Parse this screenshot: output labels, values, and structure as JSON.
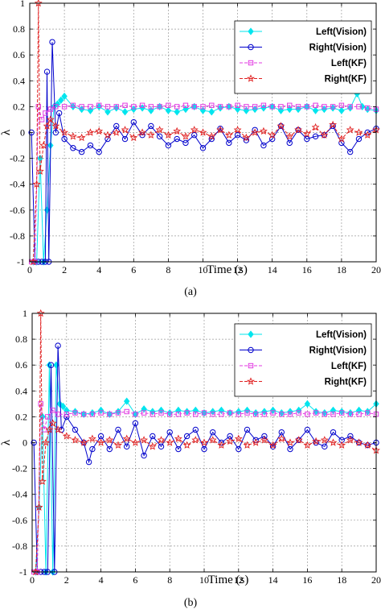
{
  "chart_data": [
    {
      "type": "line",
      "caption": "(a)",
      "xlabel": "Time (s)",
      "ylabel": "λ",
      "xlim": [
        0,
        20
      ],
      "ylim": [
        -1,
        1
      ],
      "xticks": [
        0,
        2,
        4,
        6,
        8,
        10,
        12,
        14,
        16,
        18,
        20
      ],
      "yticks": [
        1,
        0.8,
        0.6,
        0.4,
        0.2,
        0,
        -0.2,
        -0.4,
        -0.6,
        -0.8,
        -1
      ],
      "grid": true,
      "legend_position": "top-right",
      "series": [
        {
          "name": "Left(Vision)",
          "color": "#00e5ee",
          "marker": "diamond",
          "linestyle": "solid",
          "x": [
            0.2,
            0.4,
            0.6,
            0.8,
            1.0,
            1.2,
            1.4,
            1.6,
            1.8,
            2.0,
            2.5,
            3,
            3.5,
            4,
            4.5,
            5,
            5.5,
            6,
            6.5,
            7,
            7.5,
            8,
            8.5,
            9,
            9.5,
            10,
            10.5,
            11,
            11.5,
            12,
            12.5,
            13,
            13.5,
            14,
            14.5,
            15,
            15.5,
            16,
            16.5,
            17,
            17.5,
            18,
            18.5,
            18.9,
            19.2,
            19.5,
            20
          ],
          "y": [
            -1,
            -1,
            -0.2,
            -1,
            -0.6,
            -0.1,
            0.2,
            0.22,
            0.25,
            0.28,
            0.2,
            0.18,
            0.17,
            0.2,
            0.16,
            0.19,
            0.16,
            0.18,
            0.19,
            0.17,
            0.2,
            0.17,
            0.16,
            0.18,
            0.2,
            0.17,
            0.16,
            0.19,
            0.2,
            0.18,
            0.17,
            0.18,
            0.19,
            0.2,
            0.17,
            0.18,
            0.18,
            0.2,
            0.17,
            0.18,
            0.19,
            0.17,
            0.19,
            0.3,
            0.2,
            0.18,
            0.17
          ]
        },
        {
          "name": "Right(Vision)",
          "color": "#0000cc",
          "marker": "circle",
          "linestyle": "solid",
          "x": [
            0.1,
            0.3,
            0.5,
            0.7,
            0.9,
            1.0,
            1.1,
            1.3,
            1.5,
            1.7,
            2.0,
            2.5,
            3,
            3.5,
            4,
            4.5,
            5,
            5.5,
            6,
            6.5,
            7,
            7.5,
            8,
            8.5,
            9,
            9.5,
            10,
            10.5,
            11,
            11.5,
            12,
            12.5,
            13,
            13.5,
            14,
            14.5,
            15,
            15.5,
            16,
            16.5,
            17,
            17.5,
            18,
            18.5,
            19,
            19.5,
            20
          ],
          "y": [
            0,
            -1,
            -1,
            -1,
            -1,
            0.47,
            -1,
            0.7,
            0,
            0.15,
            -0.05,
            -0.12,
            -0.15,
            -0.1,
            -0.15,
            -0.05,
            0.05,
            -0.05,
            0.08,
            -0.02,
            0.05,
            -0.03,
            -0.1,
            -0.05,
            -0.08,
            -0.02,
            -0.12,
            -0.05,
            0.03,
            -0.08,
            -0.02,
            -0.06,
            0.02,
            -0.1,
            -0.05,
            0.05,
            -0.08,
            0.02,
            -0.05,
            -0.03,
            -0.02,
            0.05,
            -0.08,
            -0.15,
            -0.05,
            0,
            0.03
          ]
        },
        {
          "name": "Left(KF)",
          "color": "#e23be2",
          "marker": "square",
          "linestyle": "dashed",
          "x": [
            0.1,
            0.3,
            0.5,
            0.7,
            0.9,
            1.2,
            1.5,
            2,
            2.5,
            3,
            3.5,
            4,
            4.5,
            5,
            5.5,
            6,
            6.5,
            7,
            7.5,
            8,
            8.5,
            9,
            9.5,
            10,
            10.5,
            11,
            11.5,
            12,
            12.5,
            13,
            13.5,
            14,
            14.5,
            15,
            15.5,
            16,
            16.5,
            17,
            17.5,
            18,
            18.5,
            19,
            19.5,
            20
          ],
          "y": [
            -1,
            -1,
            0.2,
            0.1,
            0.15,
            0.18,
            0.2,
            0.2,
            0.21,
            0.2,
            0.2,
            0.21,
            0.2,
            0.2,
            0.21,
            0.2,
            0.21,
            0.2,
            0.2,
            0.21,
            0.2,
            0.21,
            0.2,
            0.2,
            0.21,
            0.2,
            0.2,
            0.21,
            0.2,
            0.2,
            0.21,
            0.2,
            0.2,
            0.21,
            0.2,
            0.2,
            0.21,
            0.2,
            0.2,
            0.21,
            0.2,
            0.2,
            0.19,
            0.18
          ]
        },
        {
          "name": "Right(KF)",
          "color": "#e02020",
          "marker": "star",
          "linestyle": "dashed",
          "x": [
            0.2,
            0.4,
            0.5,
            0.6,
            0.8,
            1.0,
            1.2,
            1.5,
            2,
            2.5,
            3,
            3.5,
            4,
            4.5,
            5,
            5.5,
            6,
            6.5,
            7,
            7.5,
            8,
            8.5,
            9,
            9.5,
            10,
            10.5,
            11,
            11.5,
            12,
            12.5,
            13,
            13.5,
            14,
            14.5,
            15,
            15.5,
            16,
            16.5,
            17,
            17.5,
            18,
            18.5,
            19,
            19.5,
            20
          ],
          "y": [
            -1,
            -0.4,
            1,
            -0.3,
            -0.1,
            0.05,
            0.1,
            0.05,
            0,
            -0.03,
            -0.04,
            0,
            0.01,
            -0.02,
            0,
            0.02,
            -0.04,
            0,
            -0.02,
            0.02,
            -0.02,
            0.01,
            -0.03,
            0.02,
            0,
            -0.03,
            0.02,
            -0.02,
            0.02,
            -0.04,
            0,
            0.01,
            -0.02,
            0.05,
            -0.03,
            0.02,
            -0.01,
            0.04,
            -0.02,
            0.06,
            -0.05,
            0.02,
            0,
            -0.02,
            0.02
          ]
        }
      ]
    },
    {
      "type": "line",
      "caption": "(b)",
      "xlabel": "Time (s)",
      "ylabel": "λ",
      "xlim": [
        0,
        20
      ],
      "ylim": [
        -1,
        1
      ],
      "xticks": [
        0,
        2,
        4,
        6,
        8,
        10,
        12,
        14,
        16,
        18,
        20
      ],
      "yticks": [
        1,
        0.8,
        0.6,
        0.4,
        0.2,
        0,
        -0.2,
        -0.4,
        -0.6,
        -0.8,
        -1
      ],
      "grid": true,
      "legend_position": "top-right",
      "series": [
        {
          "name": "Left(Vision)",
          "color": "#00e5ee",
          "marker": "diamond",
          "linestyle": "solid",
          "x": [
            0.2,
            0.4,
            0.6,
            0.8,
            1.0,
            1.2,
            1.4,
            1.6,
            1.8,
            2.0,
            2.5,
            3,
            3.5,
            4,
            4.5,
            5,
            5.5,
            6,
            6.5,
            7,
            7.5,
            8,
            8.5,
            9,
            9.5,
            10,
            10.5,
            11,
            11.5,
            12,
            12.5,
            13,
            13.5,
            14,
            14.5,
            15,
            15.5,
            16,
            16.5,
            17,
            17.5,
            18,
            18.5,
            19,
            19.5,
            20
          ],
          "y": [
            -1,
            -0.5,
            0.2,
            -1,
            0.6,
            -1,
            0.6,
            0.3,
            0.28,
            0.25,
            0.24,
            0.22,
            0.23,
            0.25,
            0.22,
            0.24,
            0.32,
            0.22,
            0.26,
            0.24,
            0.25,
            0.23,
            0.25,
            0.24,
            0.25,
            0.23,
            0.24,
            0.25,
            0.23,
            0.24,
            0.25,
            0.23,
            0.24,
            0.25,
            0.23,
            0.24,
            0.25,
            0.3,
            0.24,
            0.23,
            0.25,
            0.24,
            0.23,
            0.25,
            0.24,
            0.3
          ]
        },
        {
          "name": "Right(Vision)",
          "color": "#0000cc",
          "marker": "circle",
          "linestyle": "solid",
          "x": [
            0.1,
            0.3,
            0.5,
            0.7,
            0.9,
            1.1,
            1.3,
            1.5,
            1.7,
            2.0,
            2.5,
            3,
            3.3,
            3.5,
            4,
            4.5,
            5,
            5.5,
            6,
            6.5,
            7,
            7.5,
            8,
            8.5,
            9,
            9.5,
            10,
            10.5,
            11,
            11.5,
            12,
            12.5,
            13,
            13.5,
            14,
            14.5,
            15,
            15.5,
            16,
            16.5,
            17,
            17.5,
            18,
            18.5,
            19,
            19.5,
            20
          ],
          "y": [
            0,
            -1,
            -1,
            -1,
            -1,
            0.6,
            -1,
            0.75,
            0.1,
            0.2,
            0.1,
            0,
            -0.15,
            -0.05,
            0.05,
            -0.05,
            0.1,
            -0.03,
            0.15,
            -0.1,
            0.05,
            -0.03,
            0.08,
            -0.05,
            0.05,
            0.1,
            -0.05,
            0.08,
            0,
            0.05,
            -0.05,
            0.1,
            0.02,
            0.05,
            -0.03,
            0.08,
            -0.05,
            0.02,
            0.1,
            0,
            -0.03,
            0.08,
            0.02,
            0.05,
            0,
            -0.02,
            0
          ]
        },
        {
          "name": "Left(KF)",
          "color": "#e23be2",
          "marker": "square",
          "linestyle": "dashed",
          "x": [
            0.1,
            0.3,
            0.5,
            0.7,
            0.9,
            1.2,
            1.5,
            2,
            2.5,
            3,
            3.5,
            4,
            4.5,
            5,
            5.5,
            6,
            6.5,
            7,
            7.5,
            8,
            8.5,
            9,
            9.5,
            10,
            10.5,
            11,
            11.5,
            12,
            12.5,
            13,
            13.5,
            14,
            14.5,
            15,
            15.5,
            16,
            16.5,
            17,
            17.5,
            18,
            18.5,
            19,
            19.5,
            20
          ],
          "y": [
            -1,
            -1,
            0.3,
            0.1,
            0.2,
            0.25,
            0.22,
            0.22,
            0.23,
            0.22,
            0.22,
            0.23,
            0.22,
            0.23,
            0.24,
            0.22,
            0.23,
            0.22,
            0.23,
            0.22,
            0.22,
            0.23,
            0.22,
            0.23,
            0.22,
            0.22,
            0.23,
            0.22,
            0.23,
            0.22,
            0.22,
            0.23,
            0.22,
            0.22,
            0.23,
            0.22,
            0.23,
            0.22,
            0.22,
            0.23,
            0.22,
            0.22,
            0.23,
            0.22
          ]
        },
        {
          "name": "Right(KF)",
          "color": "#e02020",
          "marker": "star",
          "linestyle": "dashed",
          "x": [
            0.2,
            0.4,
            0.5,
            0.6,
            0.8,
            1.0,
            1.2,
            1.5,
            2,
            2.5,
            3,
            3.5,
            4,
            4.5,
            5,
            5.5,
            6,
            6.5,
            7,
            7.5,
            8,
            8.5,
            9,
            9.5,
            10,
            10.5,
            11,
            11.5,
            12,
            12.5,
            13,
            13.5,
            14,
            14.5,
            15,
            15.5,
            16,
            16.5,
            17,
            17.5,
            18,
            18.5,
            19,
            19.5,
            20
          ],
          "y": [
            -1,
            -0.5,
            1,
            -0.3,
            0,
            0.1,
            0.15,
            0.1,
            0.05,
            0.02,
            0,
            0.03,
            0,
            0.02,
            -0.02,
            0.03,
            0,
            0.02,
            -0.03,
            0.02,
            0,
            0.03,
            -0.02,
            0.02,
            0,
            0.02,
            -0.02,
            0.01,
            0.03,
            -0.02,
            0,
            0.02,
            -0.02,
            0.03,
            0,
            0.02,
            -0.02,
            0.01,
            0.02,
            0,
            -0.02,
            0.02,
            0,
            -0.02,
            -0.06
          ]
        }
      ]
    }
  ]
}
